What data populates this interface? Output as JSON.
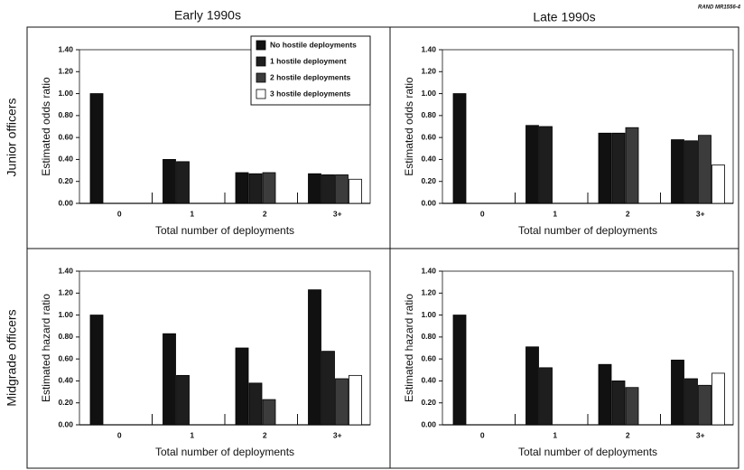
{
  "columns": [
    "Early 1990s",
    "Late 1990s"
  ],
  "rows": [
    "Junior officers",
    "Midgrade officers"
  ],
  "figure_id": "RAND MR1556-4",
  "chart_data": [
    {
      "type": "bar",
      "ylabel": "Estimated odds ratio",
      "xlabel": "Total number of deployments",
      "categories": [
        "0",
        "1",
        "2",
        "3+"
      ],
      "legend": "upper right",
      "series": [
        {
          "name": "No hostile deployments",
          "color": "#111111",
          "values": [
            1.0,
            0.4,
            0.28,
            0.27
          ]
        },
        {
          "name": "1 hostile deployment",
          "color": "#1e1e1e",
          "values": [
            null,
            0.38,
            0.27,
            0.26
          ]
        },
        {
          "name": "2 hostile deployments",
          "color": "#3c3c3c",
          "values": [
            null,
            null,
            0.28,
            0.26
          ]
        },
        {
          "name": "3 hostile deployments",
          "color": "#ffffff",
          "values": [
            null,
            null,
            null,
            0.22
          ]
        }
      ],
      "ylim": [
        0,
        1.4
      ],
      "yticks": [
        {
          "value": 0,
          "label": "0.00"
        },
        {
          "value": 0.2,
          "label": "0.20"
        },
        {
          "value": 0.4,
          "label": "0.40"
        },
        {
          "value": 0.6,
          "label": "0.60"
        },
        {
          "value": 0.8,
          "label": "0.80"
        },
        {
          "value": 1.0,
          "label": "1.00"
        },
        {
          "value": 1.2,
          "label": "1.20"
        },
        {
          "value": 1.4,
          "label": "1.40"
        }
      ]
    },
    {
      "type": "bar",
      "ylabel": "Estimated odds ratio",
      "xlabel": "Total number of deployments",
      "categories": [
        "0",
        "1",
        "2",
        "3+"
      ],
      "series": [
        {
          "color": "#111111",
          "values": [
            1.0,
            0.71,
            0.64,
            0.58
          ]
        },
        {
          "color": "#1e1e1e",
          "values": [
            null,
            0.7,
            0.64,
            0.57
          ]
        },
        {
          "color": "#3c3c3c",
          "values": [
            null,
            null,
            0.69,
            0.62
          ]
        },
        {
          "color": "#ffffff",
          "values": [
            null,
            null,
            null,
            0.35
          ]
        }
      ],
      "ylim": [
        0,
        1.4
      ],
      "yticks": [
        {
          "value": 0,
          "label": "0.00"
        },
        {
          "value": 0.2,
          "label": "0.20"
        },
        {
          "value": 0.4,
          "label": "0.40"
        },
        {
          "value": 0.6,
          "label": "0.60"
        },
        {
          "value": 0.8,
          "label": "0.80"
        },
        {
          "value": 1.0,
          "label": "1.00"
        },
        {
          "value": 1.2,
          "label": "1.20"
        },
        {
          "value": 1.4,
          "label": "1.40"
        }
      ]
    },
    {
      "type": "bar",
      "ylabel": "Estimated hazard ratio",
      "xlabel": "Total number of deployments",
      "categories": [
        "0",
        "1",
        "2",
        "3+"
      ],
      "series": [
        {
          "color": "#111111",
          "values": [
            1.0,
            0.83,
            0.7,
            1.23
          ]
        },
        {
          "color": "#1e1e1e",
          "values": [
            null,
            0.45,
            0.38,
            0.67
          ]
        },
        {
          "color": "#3c3c3c",
          "values": [
            null,
            null,
            0.23,
            0.42
          ]
        },
        {
          "color": "#ffffff",
          "values": [
            null,
            null,
            null,
            0.45
          ]
        }
      ],
      "ylim": [
        0,
        1.4
      ],
      "yticks": [
        {
          "value": 0,
          "label": "0.00"
        },
        {
          "value": 0.2,
          "label": "0.20"
        },
        {
          "value": 0.4,
          "label": "0.40"
        },
        {
          "value": 0.6,
          "label": "0.60"
        },
        {
          "value": 0.8,
          "label": "0.80"
        },
        {
          "value": 1.0,
          "label": "1.00"
        },
        {
          "value": 1.2,
          "label": "1.20"
        },
        {
          "value": 1.4,
          "label": "1.40"
        }
      ]
    },
    {
      "type": "bar",
      "ylabel": "Estimated hazard ratio",
      "xlabel": "Total number of deployments",
      "categories": [
        "0",
        "1",
        "2",
        "3+"
      ],
      "series": [
        {
          "color": "#111111",
          "values": [
            1.0,
            0.71,
            0.55,
            0.59
          ]
        },
        {
          "color": "#1e1e1e",
          "values": [
            null,
            0.52,
            0.4,
            0.42
          ]
        },
        {
          "color": "#3c3c3c",
          "values": [
            null,
            null,
            0.34,
            0.36
          ]
        },
        {
          "color": "#ffffff",
          "values": [
            null,
            null,
            null,
            0.47
          ]
        }
      ],
      "ylim": [
        0,
        1.4
      ],
      "yticks": [
        {
          "value": 0,
          "label": "0.00"
        },
        {
          "value": 0.2,
          "label": "0.20"
        },
        {
          "value": 0.4,
          "label": "0.40"
        },
        {
          "value": 0.6,
          "label": "0.60"
        },
        {
          "value": 0.8,
          "label": "0.80"
        },
        {
          "value": 1.0,
          "label": "1.00"
        },
        {
          "value": 1.2,
          "label": "1.20"
        },
        {
          "value": 1.4,
          "label": "1.40"
        }
      ]
    }
  ]
}
